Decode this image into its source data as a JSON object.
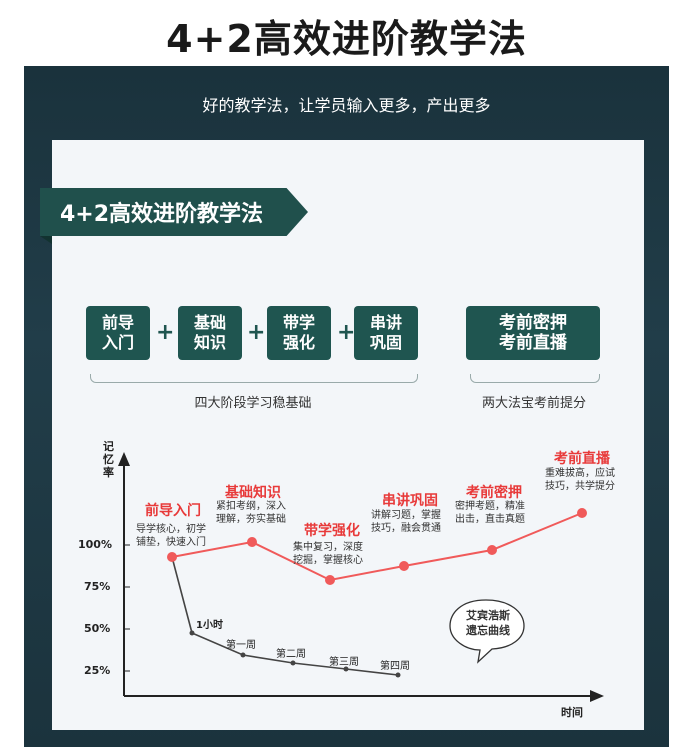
{
  "title": "4+2高效进阶教学法",
  "tagline": "好的教学法，让学员输入更多，产出更多",
  "banner": "4+2高效进阶教学法",
  "stages": [
    "前导\n入门",
    "基础\n知识",
    "带学\n强化",
    "串讲\n巩固"
  ],
  "plus": "+",
  "bonus": "考前密押\n考前直播",
  "foundation_label": "四大阶段学习稳基础",
  "bonus_label": "两大法宝考前提分",
  "chart": {
    "ylabel": "记忆率",
    "xlabel": "时间",
    "yticks": [
      "100%",
      "75%",
      "50%",
      "25%"
    ],
    "curve_label": "艾宾浩斯\n遗忘曲线",
    "week_labels": [
      "1小时",
      "第一周",
      "第二周",
      "第三周",
      "第四周"
    ]
  },
  "chart_data": {
    "type": "line",
    "series": [
      {
        "points": [
          "前导入门",
          "基础知识",
          "带学强化",
          "串讲巩固",
          "考前密押",
          "考前直播"
        ]
      },
      {
        "name": "艾宾浩斯遗忘曲线",
        "points": [
          "1小时",
          "第一周",
          "第二周",
          "第三周",
          "第四周"
        ]
      }
    ],
    "annotations": [
      {
        "title": "前导入门",
        "desc": "导学核心，初学\n铺垫，快速入门"
      },
      {
        "title": "基础知识",
        "desc": "紧扣考纲，深入\n理解，夯实基础"
      },
      {
        "title": "带学强化",
        "desc": "集中复习，深度\n挖掘，掌握核心"
      },
      {
        "title": "串讲巩固",
        "desc": "讲解习题，掌握\n技巧，融会贯通"
      },
      {
        "title": "考前密押",
        "desc": "密押考题，精准\n出击，直击真题"
      },
      {
        "title": "考前直播",
        "desc": "重难拔高，应试\n技巧，共学提分"
      }
    ],
    "colors": {
      "growth": "#f05a5a",
      "forgetting": "#444444",
      "accent": "#1f5550"
    }
  }
}
